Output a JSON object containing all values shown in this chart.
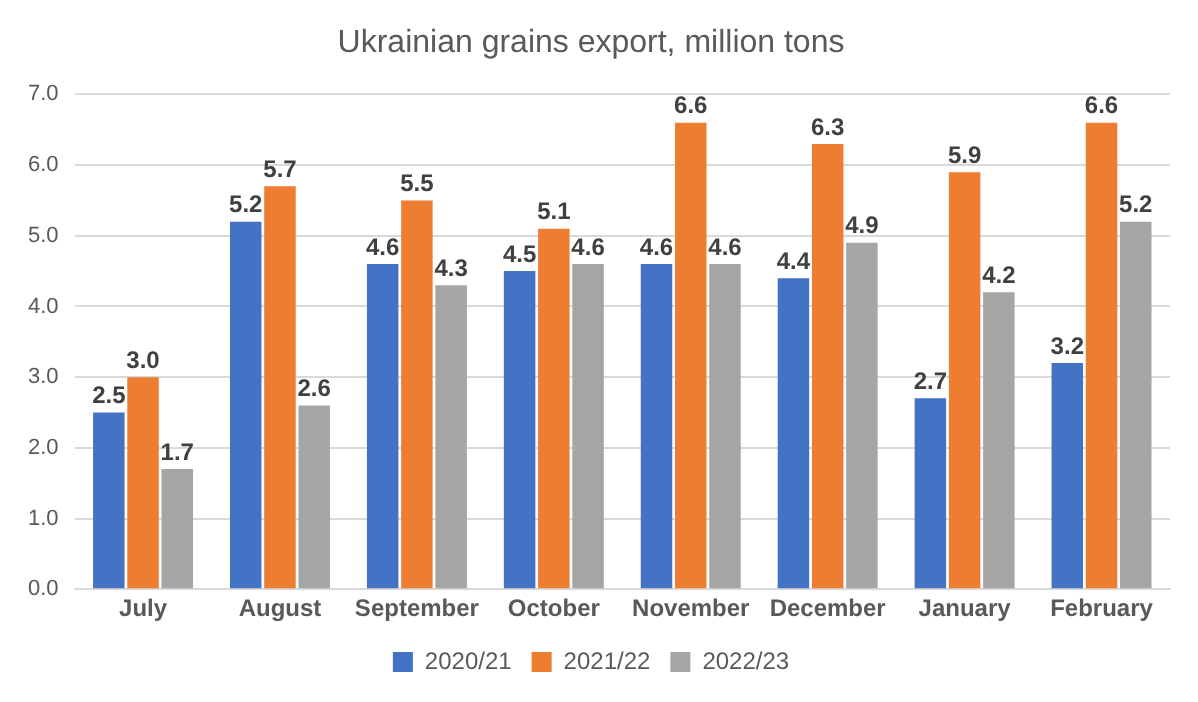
{
  "chart_data": {
    "type": "bar",
    "title": "Ukrainian grains export, million tons",
    "categories": [
      "July",
      "August",
      "September",
      "October",
      "November",
      "December",
      "January",
      "February"
    ],
    "series": [
      {
        "name": "2020/21",
        "color": "#4472c4",
        "values": [
          2.5,
          5.2,
          4.6,
          4.5,
          4.6,
          4.4,
          2.7,
          3.2
        ],
        "value_labels": [
          "2.5",
          "5.2",
          "4.6",
          "4.5",
          "4.6",
          "4.4",
          "2.7",
          "3.2"
        ]
      },
      {
        "name": "2021/22",
        "color": "#ed7d31",
        "values": [
          3.0,
          5.7,
          5.5,
          5.1,
          6.6,
          6.3,
          5.9,
          6.6
        ],
        "value_labels": [
          "3.0",
          "5.7",
          "5.5",
          "5.1",
          "6.6",
          "6.3",
          "5.9",
          "6.6"
        ]
      },
      {
        "name": "2022/23",
        "color": "#a5a5a5",
        "values": [
          1.7,
          2.6,
          4.3,
          4.6,
          4.6,
          4.9,
          4.2,
          5.2
        ],
        "value_labels": [
          "1.7",
          "2.6",
          "4.3",
          "4.6",
          "4.6",
          "4.9",
          "4.2",
          "5.2"
        ]
      }
    ],
    "ylim": [
      0,
      7
    ],
    "yticks": [
      {
        "value": 0,
        "label": "0.0"
      },
      {
        "value": 1,
        "label": "1.0"
      },
      {
        "value": 2,
        "label": "2.0"
      },
      {
        "value": 3,
        "label": "3.0"
      },
      {
        "value": 4,
        "label": "4.0"
      },
      {
        "value": 5,
        "label": "5.0"
      },
      {
        "value": 6,
        "label": "6.0"
      },
      {
        "value": 7,
        "label": "7.0"
      }
    ],
    "grid": "y",
    "legend": "bottom"
  }
}
